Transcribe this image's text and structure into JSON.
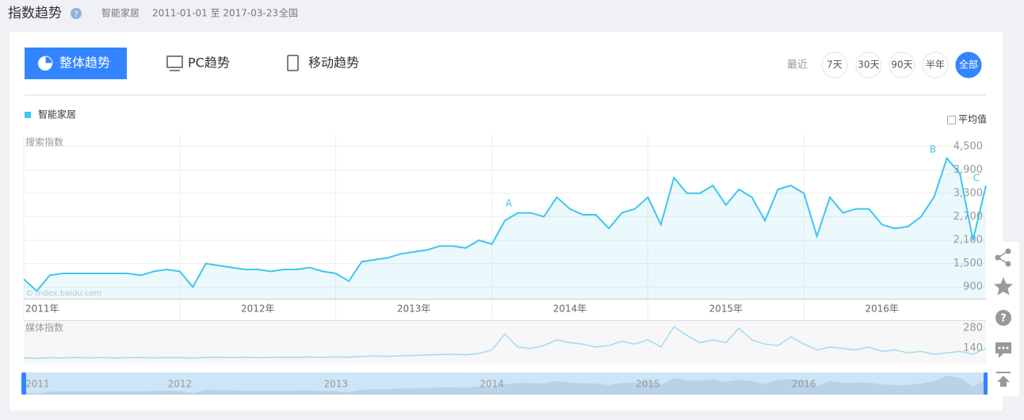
{
  "header": {
    "title": "指数趋势",
    "keyword": "智能家居",
    "date_range": "2011-01-01 至 2017-03-23",
    "region": "全国"
  },
  "tabs": [
    "整体趋势",
    "PC趋势",
    "移动趋势"
  ],
  "range": {
    "label": "最近",
    "options": [
      "7天",
      "30天",
      "90天",
      "半年",
      "全部"
    ]
  },
  "average_toggle": "平均值",
  "watermark": "© index.baidu.com",
  "navigator_labels": [
    "2011",
    "2012",
    "2013",
    "2014",
    "2015",
    "2016"
  ],
  "chart_data": [
    {
      "type": "line",
      "ylabel": "搜索指数",
      "categories": [
        "2011年",
        null,
        null,
        null,
        null,
        null,
        null,
        null,
        null,
        null,
        null,
        null,
        "2012年",
        null,
        null,
        null,
        null,
        null,
        null,
        null,
        null,
        null,
        null,
        null,
        "2013年",
        null,
        null,
        null,
        null,
        null,
        null,
        null,
        null,
        null,
        null,
        null,
        "2014年",
        null,
        null,
        null,
        null,
        null,
        null,
        null,
        null,
        null,
        null,
        null,
        "2015年",
        null,
        null,
        null,
        null,
        null,
        null,
        null,
        null,
        null,
        null,
        null,
        "2016年",
        null,
        null,
        null,
        null,
        null,
        null,
        null,
        null,
        null,
        null,
        null,
        null,
        null,
        null
      ],
      "series": [
        {
          "name": "智能家居",
          "color": "#3ec6ef",
          "values": [
            1100,
            800,
            1200,
            1250,
            1250,
            1250,
            1250,
            1250,
            1250,
            1200,
            1300,
            1350,
            1300,
            900,
            1500,
            1450,
            1400,
            1350,
            1350,
            1300,
            1350,
            1350,
            1400,
            1300,
            1250,
            1050,
            1550,
            1600,
            1650,
            1750,
            1800,
            1850,
            1950,
            1950,
            1900,
            2100,
            2000,
            2600,
            2800,
            2800,
            2700,
            3200,
            2900,
            2750,
            2750,
            2400,
            2800,
            2900,
            3200,
            2500,
            3700,
            3300,
            3300,
            3500,
            3000,
            3400,
            3200,
            2600,
            3400,
            3500,
            3300,
            2200,
            3200,
            2800,
            2900,
            2900,
            2500,
            2400,
            2450,
            2700,
            3200,
            4200,
            3800,
            2100,
            3500
          ]
        }
      ],
      "ylim": [
        600,
        4800
      ],
      "yticks": [
        900,
        {
          "value": 1500,
          "label": "1,500"
        },
        {
          "value": 2100,
          "label": "2,100"
        },
        {
          "value": 2700,
          "label": "2,700"
        },
        {
          "value": 3300,
          "label": "3,300"
        },
        {
          "value": 3900,
          "label": "3,900"
        },
        {
          "value": 4500,
          "label": "4,500"
        }
      ],
      "grid": true,
      "annotations": [
        "A",
        "B",
        "C"
      ]
    },
    {
      "type": "line",
      "ylabel": "媒体指数",
      "color": "#9fdcf2",
      "values": [
        75,
        72,
        76,
        74,
        78,
        75,
        77,
        74,
        76,
        78,
        75,
        77,
        76,
        74,
        78,
        80,
        77,
        79,
        76,
        78,
        80,
        79,
        81,
        78,
        82,
        80,
        85,
        88,
        86,
        90,
        92,
        95,
        98,
        100,
        96,
        105,
        130,
        240,
        150,
        140,
        160,
        200,
        180,
        170,
        150,
        160,
        190,
        170,
        200,
        150,
        290,
        230,
        180,
        200,
        180,
        280,
        200,
        170,
        160,
        220,
        170,
        130,
        150,
        140,
        130,
        150,
        120,
        130,
        110,
        120,
        100,
        110,
        120,
        100,
        140
      ],
      "ylim": [
        40,
        330
      ],
      "yticks": [
        140,
        280
      ]
    }
  ]
}
